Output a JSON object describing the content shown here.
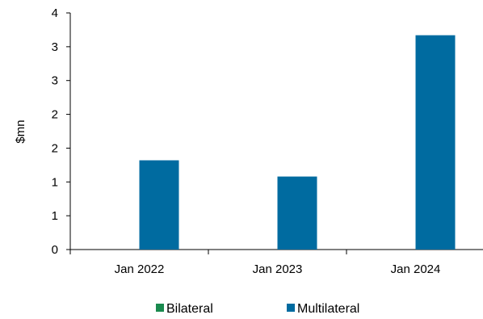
{
  "chart_data": {
    "type": "bar",
    "title": "",
    "xlabel": "",
    "ylabel": "$mn",
    "categories": [
      "Jan 2022",
      "Jan 2023",
      "Jan 2024"
    ],
    "y_tick_labels": [
      "0",
      "1",
      "1",
      "2",
      "2",
      "3",
      "3",
      "4"
    ],
    "ylim": [
      0,
      3.5
    ],
    "grid": false,
    "legend_position": "bottom",
    "series": [
      {
        "name": "Bilateral",
        "color": "#1a8a4e",
        "values": [
          0,
          0,
          0
        ]
      },
      {
        "name": "Multilateral",
        "color": "#006ba0",
        "values": [
          1.32,
          1.08,
          3.17
        ]
      }
    ]
  }
}
